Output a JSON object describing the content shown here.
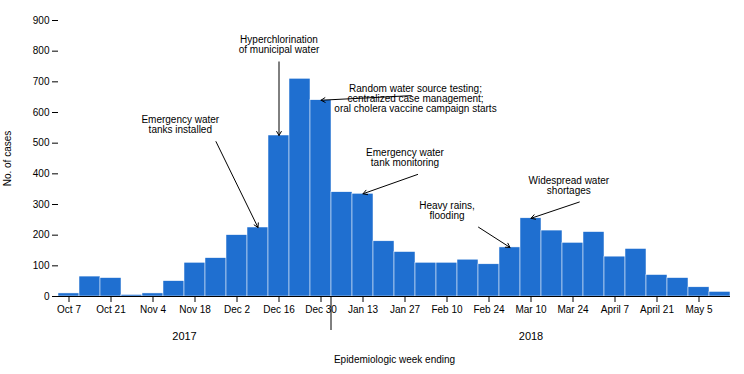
{
  "chart_data": {
    "type": "bar",
    "categories": [
      "Oct 7",
      null,
      "Oct 21",
      null,
      "Nov 4",
      null,
      "Nov 18",
      null,
      "Dec 2",
      null,
      "Dec 16",
      null,
      "Dec 30",
      null,
      "Jan 13",
      null,
      "Jan 27",
      null,
      "Feb 10",
      null,
      "Feb 24",
      null,
      "Mar 10",
      null,
      "Mar 24",
      null,
      "April 7",
      null,
      "April 21",
      null,
      "May 5",
      null
    ],
    "values": [
      10,
      65,
      60,
      5,
      10,
      50,
      110,
      125,
      200,
      225,
      525,
      710,
      640,
      340,
      335,
      180,
      145,
      110,
      110,
      120,
      105,
      160,
      255,
      215,
      175,
      210,
      130,
      155,
      70,
      60,
      30,
      15
    ],
    "color": "#1F6FD0",
    "ylim": [
      0,
      900
    ],
    "yticks": [
      0,
      100,
      200,
      300,
      400,
      500,
      600,
      700,
      800,
      900
    ],
    "ylabel": "No. of cases",
    "xlabel": "Epidemiologic week ending",
    "annotations": [
      {
        "text": "Hyperchlorination\nof municipal water",
        "x": 10,
        "y": 525
      },
      {
        "text": "Emergency water\ntanks installed",
        "x": 9,
        "y": 225
      },
      {
        "text": "Random water source testing;\ncentralized case management;\noral cholera vaccine campaign starts",
        "x": 12,
        "y": 640
      },
      {
        "text": "Emergency water\ntank monitoring",
        "x": 14,
        "y": 335
      },
      {
        "text": "Heavy rains,\nflooding",
        "x": 21,
        "y": 160
      },
      {
        "text": "Widespread water\nshortages",
        "x": 22,
        "y": 255
      },
      {
        "text": "2017"
      },
      {
        "text": "2018"
      }
    ]
  }
}
